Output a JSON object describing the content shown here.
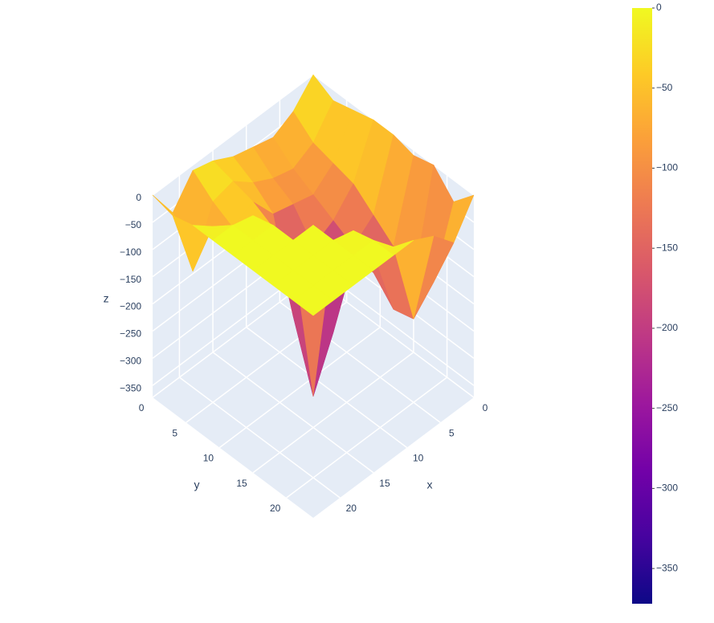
{
  "chart_data": {
    "type": "surface",
    "x": [
      0,
      3,
      6,
      9,
      12,
      15,
      18,
      21,
      24
    ],
    "y": [
      0,
      3,
      6,
      9,
      12,
      15,
      18,
      21,
      24
    ],
    "z": [
      [
        0,
        -40,
        -60,
        -50,
        -40,
        -20,
        -10,
        -60,
        0
      ],
      [
        -20,
        -70,
        -90,
        -80,
        -60,
        -30,
        -40,
        -140,
        -10
      ],
      [
        -10,
        -80,
        -110,
        -100,
        -90,
        -40,
        -60,
        -30,
        0
      ],
      [
        0,
        -90,
        -130,
        -150,
        -250,
        -60,
        -10,
        0,
        0
      ],
      [
        0,
        -120,
        -150,
        -280,
        -370,
        -80,
        0,
        0,
        0
      ],
      [
        -10,
        -150,
        -170,
        -120,
        -60,
        0,
        0,
        0,
        0
      ],
      [
        0,
        -190,
        -210,
        -80,
        -10,
        0,
        0,
        0,
        0
      ],
      [
        -40,
        -160,
        -200,
        -40,
        0,
        0,
        0,
        0,
        0
      ],
      [
        0,
        -60,
        -20,
        0,
        0,
        0,
        0,
        0,
        0
      ]
    ],
    "xaxis_title": "x",
    "yaxis_title": "y",
    "zaxis_title": "z",
    "xlim": [
      0,
      24
    ],
    "ylim": [
      0,
      24
    ],
    "zlim": [
      -372,
      0
    ],
    "xticks": [
      0,
      5,
      10,
      15,
      20
    ],
    "yticks": [
      0,
      5,
      10,
      15,
      20
    ],
    "zticks": [
      0,
      {
        "value": -50,
        "label": "−50"
      },
      {
        "value": -100,
        "label": "−100"
      },
      {
        "value": -150,
        "label": "−150"
      },
      {
        "value": -200,
        "label": "−200"
      },
      {
        "value": -250,
        "label": "−250"
      },
      {
        "value": -300,
        "label": "−300"
      },
      {
        "value": -350,
        "label": "−350"
      }
    ],
    "colorbar_ticks": [
      0,
      {
        "value": -50,
        "label": "−50"
      },
      {
        "value": -100,
        "label": "−100"
      },
      {
        "value": -150,
        "label": "−150"
      },
      {
        "value": -200,
        "label": "−200"
      },
      {
        "value": -250,
        "label": "−250"
      },
      {
        "value": -300,
        "label": "−300"
      },
      {
        "value": -350,
        "label": "−350"
      }
    ],
    "colorscale": [
      "#0d0887",
      "#46039f",
      "#7201a8",
      "#9c179e",
      "#bd3786",
      "#d8576b",
      "#ed7953",
      "#fb9f3a",
      "#fdca26",
      "#f0f921"
    ],
    "grid": true
  }
}
